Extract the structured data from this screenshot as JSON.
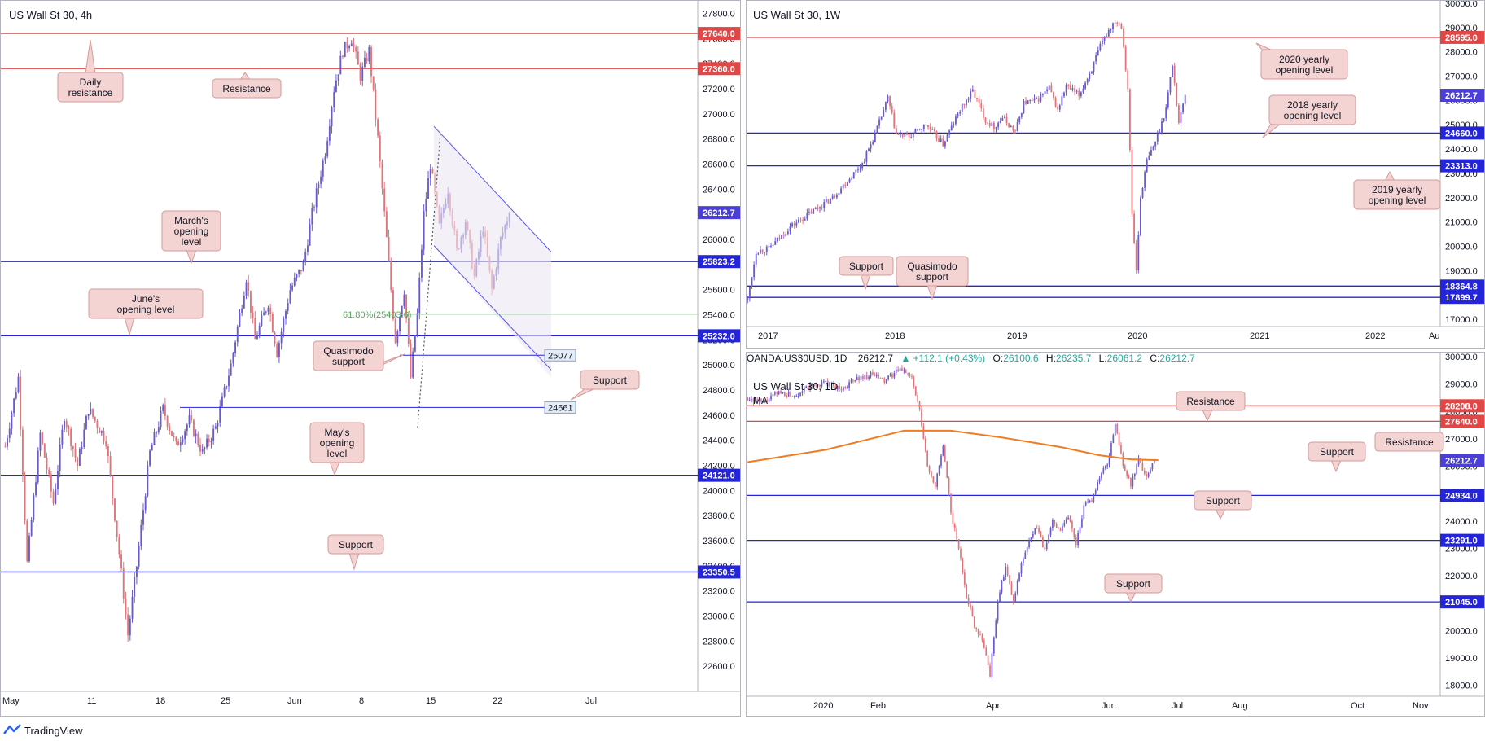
{
  "colors": {
    "bull": "#6a5acd",
    "bear": "#e0747a",
    "support_line": "#2424d8",
    "resistance_line": "#e04848",
    "callout_fill": "#f4d3d3",
    "callout_stroke": "#d59a9a",
    "ma_line": "#f07c22",
    "fib_line": "#7ed07e",
    "channel_line": "#5858e8"
  },
  "footer": {
    "brand": "TradingView"
  },
  "ohlc_bar": {
    "symbol": "OANDA:US30USD, 1D",
    "last": "26212.7",
    "change": "▲ +112.1 (+0.43%)",
    "o_label": "O:",
    "o": "26100.6",
    "h_label": "H:",
    "h": "26235.7",
    "l_label": "L:",
    "l": "26061.2",
    "c_label": "C:",
    "c": "26212.7"
  },
  "chart_data": [
    {
      "id": "h4",
      "type": "candlestick",
      "title": "US Wall St 30, 4h",
      "ylim": [
        22400,
        27900
      ],
      "y_ticks": [
        "22600.0",
        "22800.0",
        "23000.0",
        "23200.0",
        "23400.0",
        "23600.0",
        "23800.0",
        "24000.0",
        "24200.0",
        "24400.0",
        "24600.0",
        "24800.0",
        "25000.0",
        "25200.0",
        "25400.0",
        "25600.0",
        "25800.0",
        "26000.0",
        "26200.0",
        "26400.0",
        "26600.0",
        "26800.0",
        "27000.0",
        "27200.0",
        "27400.0",
        "27600.0",
        "27800.0"
      ],
      "x_labels": [
        "May",
        "11",
        "18",
        "25",
        "Jun",
        "8",
        "15",
        "22",
        "Jul"
      ],
      "levels": [
        {
          "label": "27640.0",
          "value": 27640,
          "kind": "resistance"
        },
        {
          "label": "27360.0",
          "value": 27360,
          "kind": "resistance"
        },
        {
          "label": "25823.2",
          "value": 25823.2,
          "kind": "support"
        },
        {
          "label": "25232.0",
          "value": 25232,
          "kind": "support"
        },
        {
          "label": "24121.0",
          "value": 24121,
          "kind": "support"
        },
        {
          "label": "23350.5",
          "value": 23350.5,
          "kind": "support"
        }
      ],
      "last_price": "26212.7",
      "short_levels": [
        {
          "label": "25077",
          "value": 25077
        },
        {
          "label": "24661",
          "value": 24661
        }
      ],
      "fib": {
        "label": "61.80%(25403.6)",
        "value": 25403.6
      },
      "annotations": [
        {
          "text": [
            "Daily",
            "resistance"
          ]
        },
        {
          "text": [
            "Resistance"
          ]
        },
        {
          "text": [
            "March's",
            "opening",
            "level"
          ]
        },
        {
          "text": [
            "June's",
            "opening level"
          ]
        },
        {
          "text": [
            "Quasimodo",
            "support"
          ]
        },
        {
          "text": [
            "Support"
          ]
        },
        {
          "text": [
            "May's",
            "opening",
            "level"
          ]
        },
        {
          "text": [
            "Support"
          ]
        }
      ],
      "path": [
        [
          0,
          24350
        ],
        [
          6,
          24900
        ],
        [
          10,
          23420
        ],
        [
          16,
          24450
        ],
        [
          22,
          23900
        ],
        [
          27,
          24600
        ],
        [
          33,
          24200
        ],
        [
          38,
          24650
        ],
        [
          46,
          24400
        ],
        [
          52,
          23500
        ],
        [
          56,
          22850
        ],
        [
          60,
          23400
        ],
        [
          66,
          24300
        ],
        [
          72,
          24650
        ],
        [
          78,
          24350
        ],
        [
          84,
          24560
        ],
        [
          90,
          24300
        ],
        [
          96,
          24500
        ],
        [
          103,
          25000
        ],
        [
          110,
          25700
        ],
        [
          114,
          25200
        ],
        [
          120,
          25500
        ],
        [
          124,
          25100
        ],
        [
          130,
          25600
        ],
        [
          136,
          25800
        ],
        [
          140,
          26200
        ],
        [
          146,
          26700
        ],
        [
          150,
          27200
        ],
        [
          154,
          27500
        ],
        [
          158,
          27600
        ],
        [
          162,
          27300
        ],
        [
          166,
          27500
        ],
        [
          170,
          26800
        ],
        [
          174,
          26000
        ],
        [
          178,
          25200
        ],
        [
          182,
          25600
        ],
        [
          185,
          24900
        ],
        [
          188,
          25400
        ],
        [
          191,
          26200
        ],
        [
          194,
          26600
        ],
        [
          198,
          26100
        ],
        [
          202,
          26400
        ],
        [
          206,
          25900
        ],
        [
          210,
          26150
        ],
        [
          214,
          25700
        ],
        [
          218,
          26100
        ],
        [
          222,
          25600
        ],
        [
          226,
          26000
        ],
        [
          230,
          26212.7
        ]
      ],
      "n_slots": 286
    },
    {
      "id": "w1",
      "type": "candlestick",
      "title": "US Wall St 30, 1W",
      "ylim": [
        16700,
        30100
      ],
      "y_ticks": [
        "17000.0",
        "18000.0",
        "19000.0",
        "20000.0",
        "21000.0",
        "22000.0",
        "23000.0",
        "24000.0",
        "25000.0",
        "26000.0",
        "27000.0",
        "28000.0",
        "29000.0",
        "30000.0"
      ],
      "x_labels": [
        "2017",
        "2018",
        "2019",
        "2020",
        "2021",
        "2022",
        "Au"
      ],
      "levels": [
        {
          "label": "28595.0",
          "value": 28595,
          "kind": "resistance"
        },
        {
          "label": "24660.0",
          "value": 24660,
          "kind": "support"
        },
        {
          "label": "23313.0",
          "value": 23313,
          "kind": "support"
        },
        {
          "label": "18364.8",
          "value": 18364.8,
          "kind": "support"
        },
        {
          "label": "17899.7",
          "value": 17899.7,
          "kind": "support"
        }
      ],
      "last_price": "26212.7",
      "annotations": [
        {
          "text": [
            "2020 yearly",
            "opening level"
          ]
        },
        {
          "text": [
            "2018 yearly",
            "opening level"
          ]
        },
        {
          "text": [
            "2019 yearly",
            "opening level"
          ]
        },
        {
          "text": [
            "Support"
          ]
        },
        {
          "text": [
            "Quasimodo",
            "support"
          ]
        }
      ],
      "path": [
        [
          0,
          17800
        ],
        [
          4,
          19800
        ],
        [
          10,
          19900
        ],
        [
          20,
          20800
        ],
        [
          30,
          21400
        ],
        [
          40,
          22000
        ],
        [
          46,
          22600
        ],
        [
          54,
          23400
        ],
        [
          60,
          24600
        ],
        [
          66,
          26100
        ],
        [
          70,
          24600
        ],
        [
          76,
          24500
        ],
        [
          84,
          25000
        ],
        [
          92,
          24200
        ],
        [
          100,
          25600
        ],
        [
          106,
          26400
        ],
        [
          112,
          25200
        ],
        [
          116,
          24900
        ],
        [
          120,
          25300
        ],
        [
          126,
          24700
        ],
        [
          130,
          25900
        ],
        [
          136,
          26000
        ],
        [
          142,
          26500
        ],
        [
          146,
          25600
        ],
        [
          150,
          26600
        ],
        [
          156,
          26200
        ],
        [
          162,
          27300
        ],
        [
          166,
          28200
        ],
        [
          170,
          28900
        ],
        [
          173,
          29300
        ],
        [
          176,
          29100
        ],
        [
          179,
          26500
        ],
        [
          181,
          21300
        ],
        [
          183,
          19000
        ],
        [
          185,
          22000
        ],
        [
          188,
          23500
        ],
        [
          191,
          24100
        ],
        [
          194,
          24800
        ],
        [
          197,
          25700
        ],
        [
          200,
          27500
        ],
        [
          203,
          25100
        ],
        [
          206,
          26212.7
        ]
      ],
      "n_slots": 440
    },
    {
      "id": "d1",
      "type": "candlestick",
      "title": "US Wall St 30, 1D",
      "ma_label": "MA",
      "ylim": [
        17600,
        30150
      ],
      "y_ticks": [
        "18000.0",
        "19000.0",
        "20000.0",
        "21000.0",
        "22000.0",
        "23000.0",
        "24000.0",
        "25000.0",
        "26000.0",
        "27000.0",
        "28000.0",
        "29000.0",
        "30000.0"
      ],
      "x_labels": [
        "2020",
        "Feb",
        "Apr",
        "Jun",
        "Jul",
        "Aug",
        "Oct",
        "Nov"
      ],
      "levels": [
        {
          "label": "28208.0",
          "value": 28208,
          "kind": "resistance"
        },
        {
          "label": "27640.0",
          "value": 27640,
          "kind": "resistance"
        },
        {
          "label": "24934.0",
          "value": 24934,
          "kind": "support"
        },
        {
          "label": "23291.0",
          "value": 23291,
          "kind": "support"
        },
        {
          "label": "21045.0",
          "value": 21045,
          "kind": "support"
        }
      ],
      "last_price": "26212.7",
      "annotations": [
        {
          "text": [
            "Resistance"
          ]
        },
        {
          "text": [
            "Resistance"
          ]
        },
        {
          "text": [
            "Support"
          ]
        },
        {
          "text": [
            "Support"
          ]
        },
        {
          "text": [
            "Support"
          ]
        }
      ],
      "path": [
        [
          0,
          28500
        ],
        [
          8,
          28300
        ],
        [
          16,
          28700
        ],
        [
          24,
          28600
        ],
        [
          32,
          28900
        ],
        [
          40,
          29050
        ],
        [
          48,
          28800
        ],
        [
          56,
          29200
        ],
        [
          64,
          29350
        ],
        [
          70,
          29100
        ],
        [
          76,
          29450
        ],
        [
          80,
          29550
        ],
        [
          84,
          29200
        ],
        [
          88,
          28000
        ],
        [
          92,
          26000
        ],
        [
          96,
          25300
        ],
        [
          100,
          26700
        ],
        [
          104,
          24300
        ],
        [
          108,
          23000
        ],
        [
          112,
          21300
        ],
        [
          116,
          20200
        ],
        [
          120,
          19700
        ],
        [
          124,
          18400
        ],
        [
          128,
          21100
        ],
        [
          132,
          22300
        ],
        [
          136,
          21000
        ],
        [
          140,
          22500
        ],
        [
          144,
          23200
        ],
        [
          148,
          23800
        ],
        [
          152,
          22900
        ],
        [
          156,
          24000
        ],
        [
          160,
          23700
        ],
        [
          164,
          24200
        ],
        [
          168,
          23200
        ],
        [
          172,
          24500
        ],
        [
          176,
          24800
        ],
        [
          180,
          25600
        ],
        [
          184,
          26100
        ],
        [
          188,
          27500
        ],
        [
          192,
          26100
        ],
        [
          196,
          25300
        ],
        [
          200,
          26200
        ],
        [
          204,
          25600
        ],
        [
          208,
          26212.7
        ]
      ],
      "ma_path": [
        [
          0,
          26150
        ],
        [
          40,
          26600
        ],
        [
          80,
          27300
        ],
        [
          104,
          27300
        ],
        [
          130,
          27050
        ],
        [
          160,
          26700
        ],
        [
          180,
          26400
        ],
        [
          196,
          26250
        ],
        [
          210,
          26220
        ]
      ],
      "n_slots": 500
    }
  ]
}
